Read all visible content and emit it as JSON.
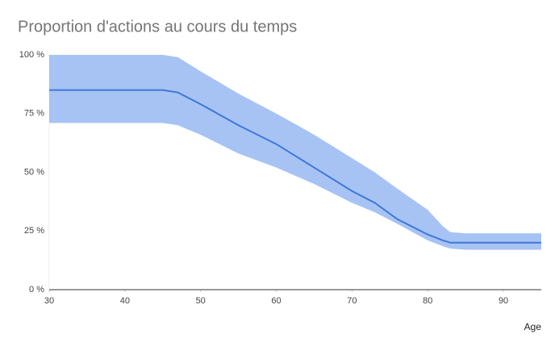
{
  "chart_data": {
    "type": "line",
    "title": "Proportion d'actions au cours du temps",
    "x_label": "Age",
    "x": [
      30,
      45,
      47,
      50,
      55,
      60,
      65,
      70,
      73,
      76,
      80,
      82,
      83,
      85,
      90,
      95
    ],
    "line": {
      "color": "#3d78d8",
      "values": [
        85,
        85,
        84,
        79,
        70,
        62,
        52,
        42,
        37,
        30,
        23.5,
        21,
        20,
        20,
        20,
        20
      ]
    },
    "band": {
      "color": "#a7c3f4",
      "upper": [
        100,
        100,
        99,
        93,
        83.5,
        75,
        66,
        56,
        50,
        43,
        34,
        27,
        24.5,
        24,
        24,
        24
      ],
      "lower": [
        71,
        71,
        70,
        66,
        58,
        52,
        45,
        37,
        33,
        28,
        21,
        18.5,
        17.5,
        17,
        17,
        17
      ]
    },
    "xlim": [
      30,
      95
    ],
    "xticks": [
      30,
      40,
      50,
      60,
      70,
      80,
      90
    ],
    "ylim": [
      0,
      100
    ],
    "yticks": [
      {
        "value": 0,
        "label": "0 %"
      },
      {
        "value": 25,
        "label": "25 %"
      },
      {
        "value": 50,
        "label": "50 %"
      },
      {
        "value": 75,
        "label": "75 %"
      },
      {
        "value": 100,
        "label": "100 %"
      }
    ],
    "grid": false
  }
}
